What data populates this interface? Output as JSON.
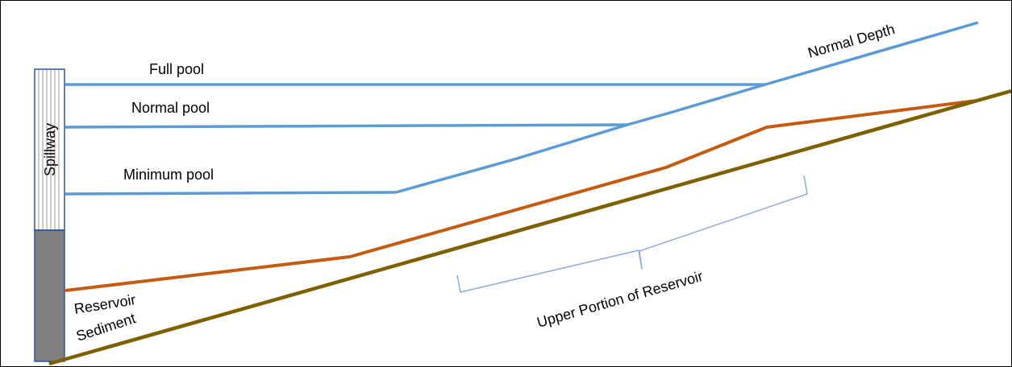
{
  "diagram": {
    "labels": {
      "full_pool": "Full pool",
      "normal_pool": "Normal pool",
      "minimum_pool": "Minimum pool",
      "normal_depth": "Normal Depth",
      "spillway": "Spillway",
      "reservoir_sediment_line1": "Reservoir",
      "reservoir_sediment_line2": "Sediment",
      "upper_portion": "Upper Portion of Reservoir"
    },
    "colors": {
      "water": "#5B9BD5",
      "sediment": "#C55A11",
      "bed": "#7F6000",
      "spillway_fill": "#7F7F7F",
      "spillway_border": "#2E5597",
      "brace": "#8FAADC",
      "frame": "#000000"
    }
  }
}
